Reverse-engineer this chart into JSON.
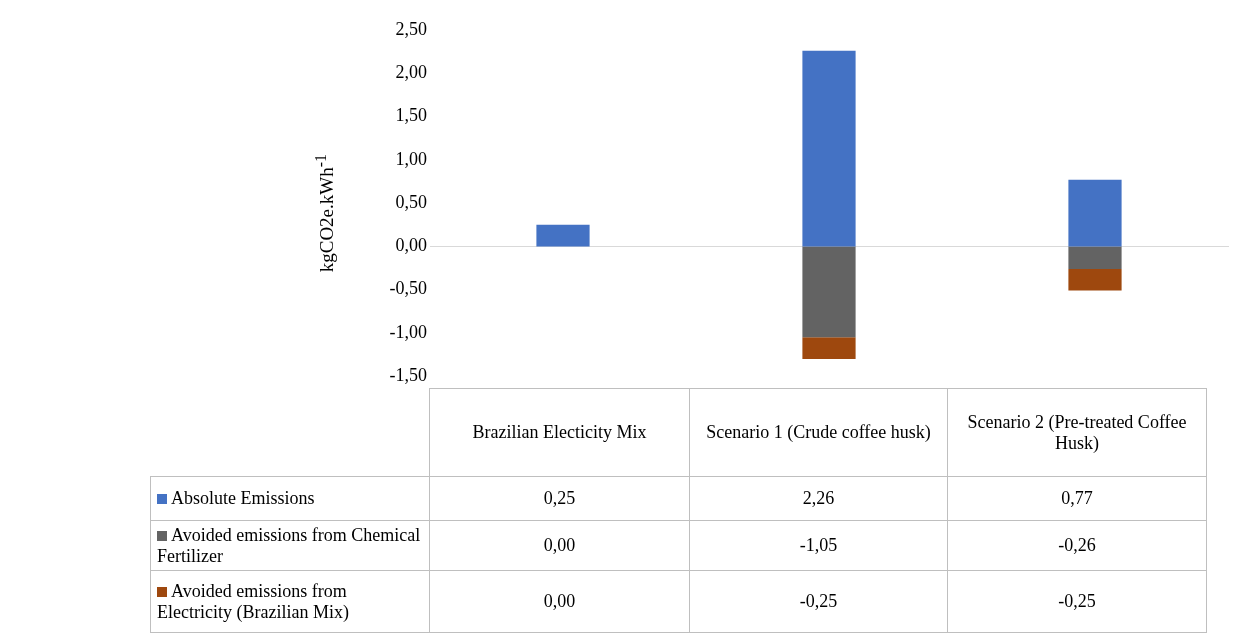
{
  "chart_data": {
    "type": "bar",
    "ylabel": "kgCO2e.kWh$^{-1}$",
    "categories": [
      "Brazilian Electicity Mix",
      "Scenario 1 (Crude coffee husk)",
      "Scenario 2 (Pre-treated Coffee Husk)"
    ],
    "stacked": true,
    "series": [
      {
        "name": "Absolute Emissions",
        "color": "#4472c4",
        "values": [
          0.25,
          2.26,
          0.77
        ],
        "value_labels": [
          "0,25",
          "2,26",
          "0,77"
        ]
      },
      {
        "name": "Avoided emissions from Chemical Fertilizer",
        "color": "#636363",
        "values": [
          0.0,
          -1.05,
          -0.26
        ],
        "value_labels": [
          "0,00",
          "-1,05",
          "-0,26"
        ]
      },
      {
        "name": "Avoided emissions from Electricity (Brazilian Mix)",
        "color": "#9e480e",
        "values": [
          0.0,
          -0.25,
          -0.25
        ],
        "value_labels": [
          "0,00",
          "-0,25",
          "-0,25"
        ]
      }
    ],
    "ylim": [
      -1.5,
      2.5
    ],
    "yticks": [
      {
        "value": -1.5,
        "label": "-1,50"
      },
      {
        "value": -1,
        "label": "-1,00"
      },
      {
        "value": -0.5,
        "label": "-0,50"
      },
      {
        "value": 0,
        "label": "0,00"
      },
      {
        "value": 0.5,
        "label": "0,50"
      },
      {
        "value": 1,
        "label": "1,00"
      },
      {
        "value": 1.5,
        "label": "1,50"
      },
      {
        "value": 2,
        "label": "2,00"
      },
      {
        "value": 2.5,
        "label": "2,50"
      }
    ],
    "legend": "bottom"
  }
}
